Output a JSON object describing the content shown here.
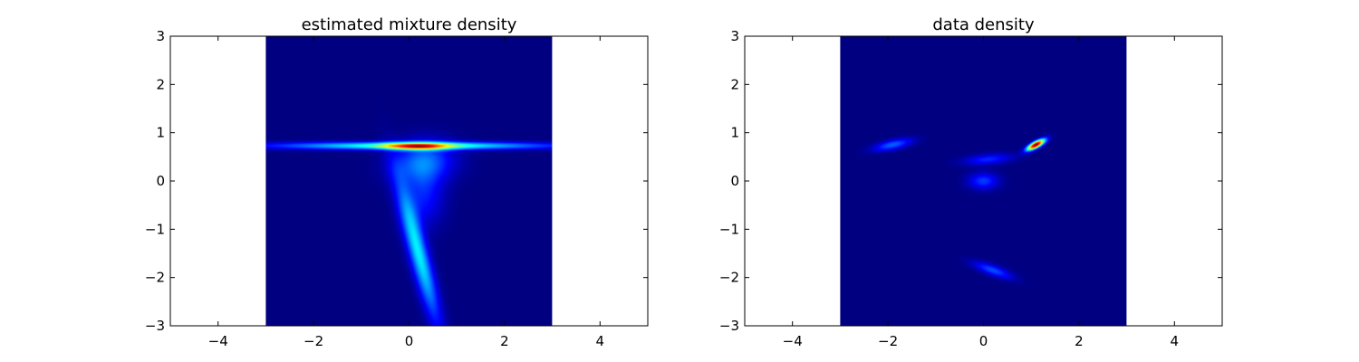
{
  "colormap": "jet",
  "chart_data": [
    {
      "type": "heatmap",
      "title": "estimated mixture density",
      "xlabel": "",
      "ylabel": "",
      "xlim": [
        -5,
        5
      ],
      "ylim": [
        -3,
        3
      ],
      "xticks": [
        -4,
        -2,
        0,
        2,
        4
      ],
      "yticks": [
        -3,
        -2,
        -1,
        0,
        1,
        2,
        3
      ],
      "xtick_labels": [
        "−4",
        "−2",
        "0",
        "2",
        "4"
      ],
      "ytick_labels": [
        "−3",
        "−2",
        "−1",
        "0",
        "1",
        "2",
        "3"
      ],
      "image_extent": {
        "x": [
          -3,
          3
        ],
        "y": [
          -3,
          3
        ]
      },
      "grid": false,
      "background_color": "#00007f",
      "components": [
        {
          "mean": [
            0.1,
            0.73
          ],
          "sd": [
            2.0,
            0.055
          ],
          "rho": 0.0,
          "weight": 0.55
        },
        {
          "mean": [
            0.15,
            0.72
          ],
          "sd": [
            0.45,
            0.05
          ],
          "rho": 0.0,
          "weight": 0.55
        },
        {
          "mean": [
            0.3,
            0.4
          ],
          "sd": [
            0.45,
            0.3
          ],
          "rho": 0.1,
          "weight": 0.28
        },
        {
          "mean": [
            0.2,
            -1.5
          ],
          "sd": [
            0.3,
            1.0
          ],
          "rho": -0.88,
          "weight": 0.45
        },
        {
          "mean": [
            0.3,
            -0.3
          ],
          "sd": [
            0.3,
            0.45
          ],
          "rho": 0.0,
          "weight": 0.18
        }
      ]
    },
    {
      "type": "heatmap",
      "title": "data density",
      "xlabel": "",
      "ylabel": "",
      "xlim": [
        -5,
        5
      ],
      "ylim": [
        -3,
        3
      ],
      "xticks": [
        -4,
        -2,
        0,
        2,
        4
      ],
      "yticks": [
        -3,
        -2,
        -1,
        0,
        1,
        2,
        3
      ],
      "xtick_labels": [
        "−4",
        "−2",
        "0",
        "2",
        "4"
      ],
      "ytick_labels": [
        "−3",
        "−2",
        "−1",
        "0",
        "1",
        "2",
        "3"
      ],
      "image_extent": {
        "x": [
          -3,
          3
        ],
        "y": [
          -3,
          3
        ]
      },
      "grid": false,
      "background_color": "#00007f",
      "components": [
        {
          "mean": [
            1.1,
            0.75
          ],
          "sd": [
            0.13,
            0.08
          ],
          "rho": 0.75,
          "weight": 1.0
        },
        {
          "mean": [
            -1.9,
            0.75
          ],
          "sd": [
            0.28,
            0.09
          ],
          "rho": 0.6,
          "weight": 0.22
        },
        {
          "mean": [
            0.1,
            0.45
          ],
          "sd": [
            0.35,
            0.08
          ],
          "rho": 0.35,
          "weight": 0.16
        },
        {
          "mean": [
            0.0,
            0.0
          ],
          "sd": [
            0.22,
            0.12
          ],
          "rho": 0.0,
          "weight": 0.18
        },
        {
          "mean": [
            0.2,
            -1.85
          ],
          "sd": [
            0.28,
            0.12
          ],
          "rho": -0.75,
          "weight": 0.2
        }
      ]
    }
  ]
}
